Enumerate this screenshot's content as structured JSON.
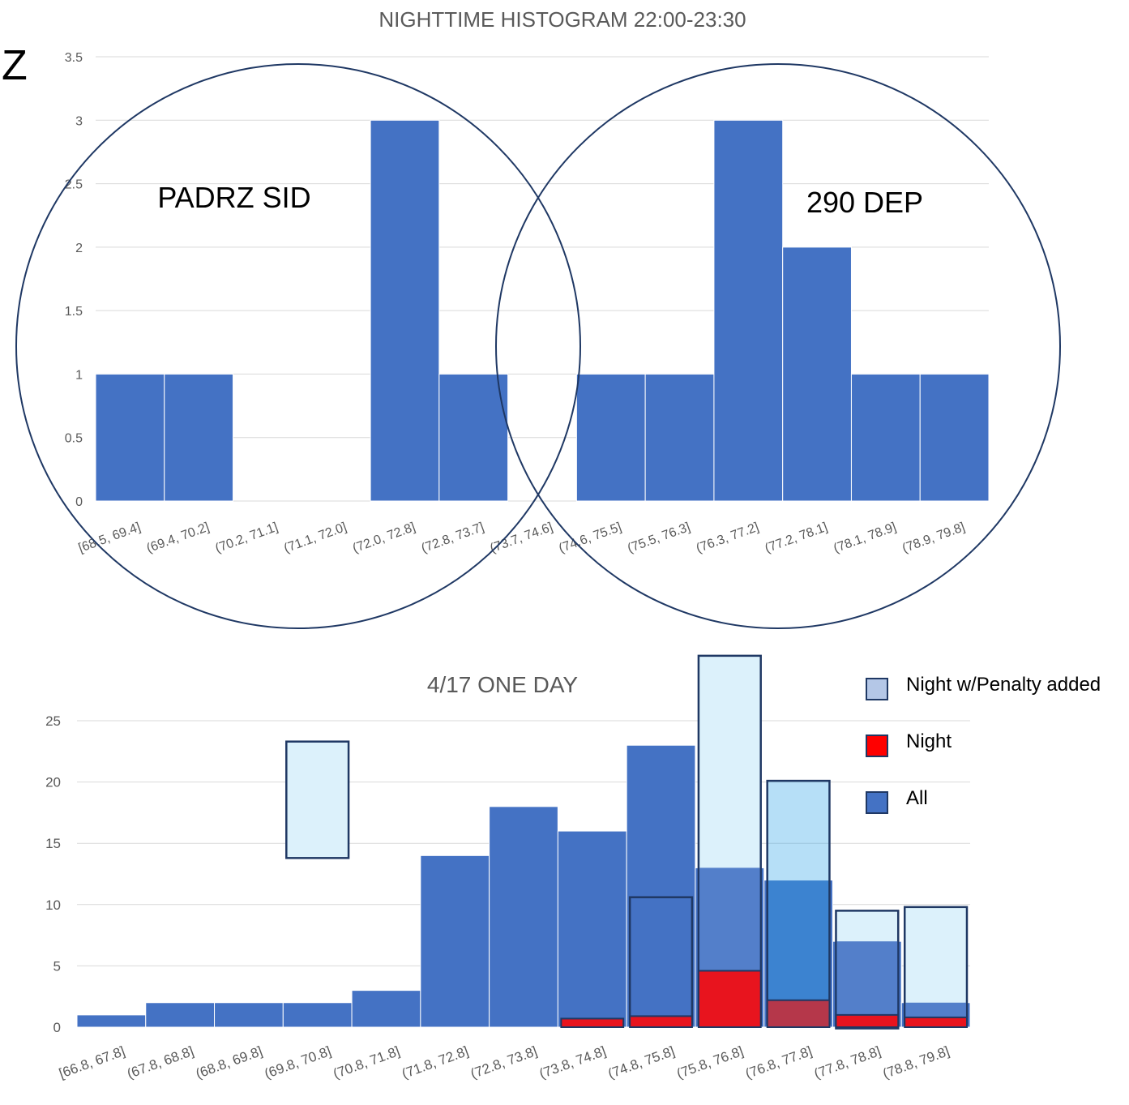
{
  "corner_mark": "Z",
  "colors": {
    "all": "#4472c4",
    "night": "#ff0000",
    "penalty_legend": "#b4c7e7",
    "penalty_fill": "#dcf1fb",
    "outline": "#1f3864",
    "grid": "#d9d9d9",
    "text": "#595959"
  },
  "legend": {
    "items": [
      {
        "label": "Night w/Penalty added",
        "color": "#b4c7e7"
      },
      {
        "label": "Night",
        "color": "#ff0000"
      },
      {
        "label": "All",
        "color": "#4472c4"
      }
    ],
    "position": "right"
  },
  "chart_data": [
    {
      "type": "bar",
      "title": "NIGHTTIME HISTOGRAM 22:00-23:30",
      "xlabel": "",
      "ylabel": "",
      "ylim": [
        0,
        3.5
      ],
      "yticks": [
        "0",
        "0.5",
        "1",
        "1.5",
        "2",
        "2.5",
        "3",
        "3.5"
      ],
      "grid": true,
      "categories": [
        "[68.5, 69.4]",
        "(69.4, 70.2]",
        "(70.2, 71.1]",
        "(71.1, 72.0]",
        "(72.0, 72.8]",
        "(72.8, 73.7]",
        "(73.7, 74.6]",
        "(74.6, 75.5]",
        "(75.5, 76.3]",
        "(76.3, 77.2]",
        "(77.2, 78.1]",
        "(78.1, 78.9]",
        "(78.9, 79.8]"
      ],
      "values": [
        1,
        1,
        0,
        0,
        3,
        1,
        0,
        1,
        1,
        3,
        2,
        1,
        1
      ],
      "annotations": [
        {
          "text": "PADRZ SID",
          "shape": "circle",
          "covers": [
            "[68.5, 69.4]",
            "(73.7, 74.6]"
          ]
        },
        {
          "text": "290 DEP",
          "shape": "circle",
          "covers": [
            "(73.7, 74.6]",
            "(78.9, 79.8]"
          ]
        }
      ]
    },
    {
      "type": "bar",
      "title": "4/17 ONE DAY",
      "xlabel": "",
      "ylabel": "",
      "ylim": [
        0,
        25
      ],
      "yticks": [
        "0",
        "5",
        "10",
        "15",
        "20",
        "25"
      ],
      "grid": true,
      "categories": [
        "[66.8, 67.8]",
        "(67.8, 68.8]",
        "(68.8, 69.8]",
        "(69.8, 70.8]",
        "(70.8, 71.8]",
        "(71.8, 72.8]",
        "(72.8, 73.8]",
        "(73.8, 74.8]",
        "(74.8, 75.8]",
        "(75.8, 76.8]",
        "(76.8, 77.8]",
        "(77.8, 78.8]",
        "(78.8, 79.8]"
      ],
      "series": [
        {
          "name": "All",
          "values": [
            1,
            2,
            2,
            2,
            3,
            14,
            18,
            16,
            23,
            13,
            12,
            7,
            2
          ]
        },
        {
          "name": "Night",
          "values": [
            0,
            0,
            0,
            0,
            0,
            0,
            0,
            0.7,
            0.9,
            4.6,
            2.2,
            1.0,
            0.8
          ]
        }
      ],
      "overlay_boxes": [
        {
          "category": "(69.8, 70.8]",
          "from": 13.8,
          "to": 23.3,
          "style": "penalty"
        },
        {
          "category": "(74.8, 75.8]",
          "from": 0.3,
          "to": 10.6,
          "style": "outline"
        },
        {
          "category": "(75.8, 76.8]",
          "from": 0.2,
          "to": 30.3,
          "style": "penalty"
        },
        {
          "category": "(76.8, 77.8]",
          "from": 0.3,
          "to": 20.1,
          "style": "penalty-dark"
        },
        {
          "category": "(77.8, 78.8]",
          "from": -0.1,
          "to": 9.5,
          "style": "penalty"
        },
        {
          "category": "(78.8, 79.8]",
          "from": 0.3,
          "to": 9.8,
          "style": "penalty"
        }
      ],
      "legend_position": "right"
    }
  ]
}
